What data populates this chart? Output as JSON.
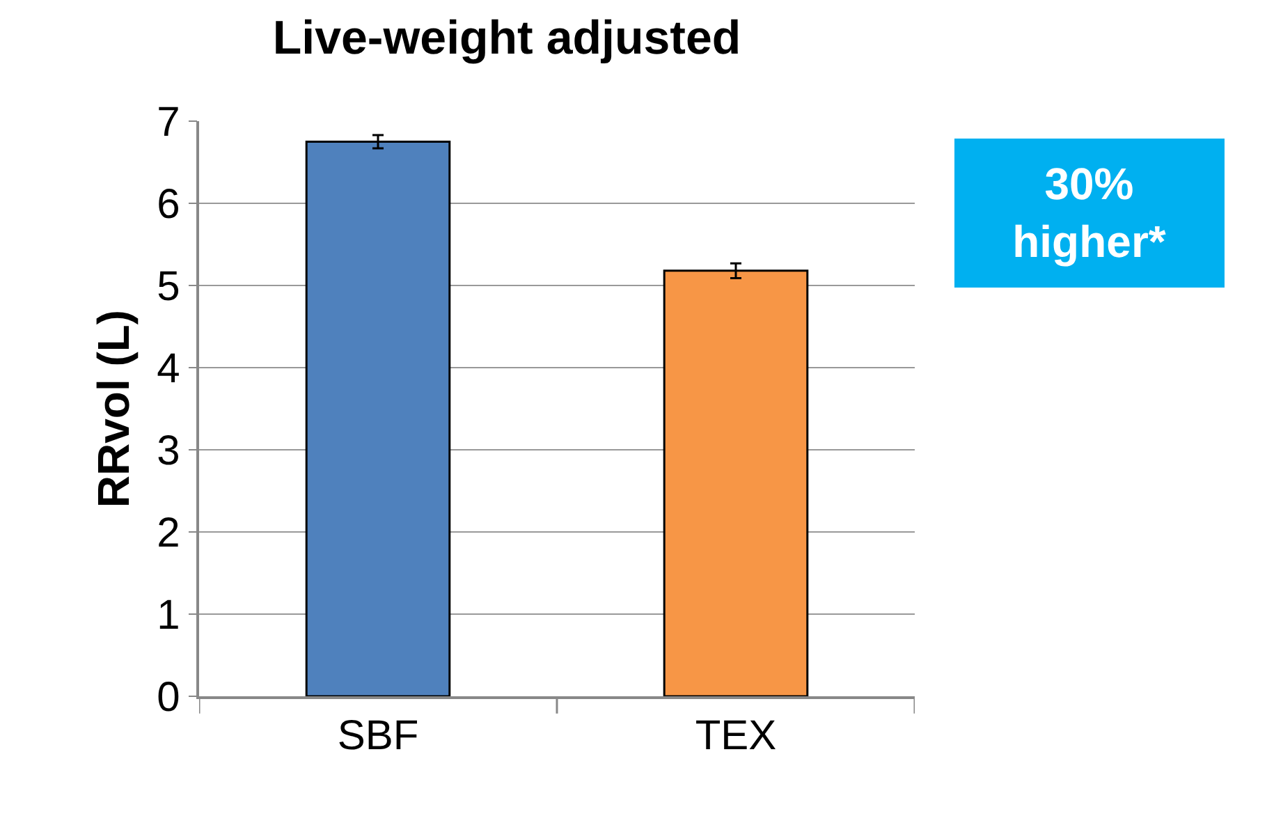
{
  "chart_data": {
    "type": "bar",
    "title": "Live-weight adjusted",
    "ylabel": "RRvol (L)",
    "categories": [
      "SBF",
      "TEX"
    ],
    "values": [
      6.75,
      5.18
    ],
    "colors": [
      "#4f81bd",
      "#f79646"
    ],
    "errors": [
      0.08,
      0.09
    ],
    "ylim": [
      0,
      7
    ],
    "yticks": [
      0,
      1,
      2,
      3,
      4,
      5,
      6,
      7
    ],
    "grid": "y",
    "annotations": [
      "30%\nhigher*"
    ]
  }
}
